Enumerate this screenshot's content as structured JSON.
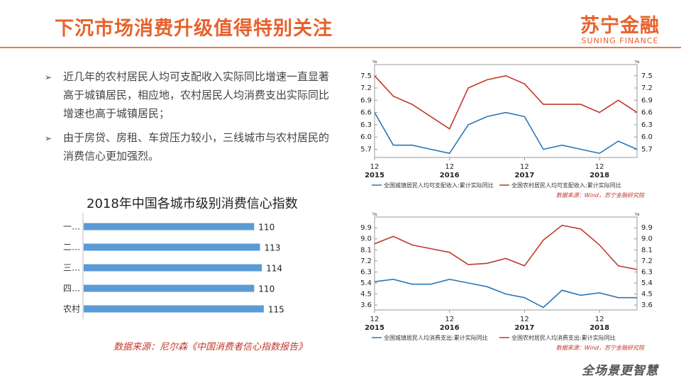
{
  "header": {
    "title": "下沉市场消费升级值得特别关注",
    "logo_cn": "苏宁金融",
    "logo_en": "SUNING FINANCE"
  },
  "bullets": [
    {
      "mark": "➢",
      "text": "近几年的农村居民人均可支配收入实际同比增速一直显著高于城镇居民，相应地，农村居民人均消费支出实际同比增速也高于城镇居民；"
    },
    {
      "mark": "➢",
      "text": "由于房贷、房租、车贷压力较小，三线城市与农村居民的消费信心更加强烈。"
    }
  ],
  "source_left": "数据来源：尼尔森《中国消费者信心指数报告》",
  "footer_logo": "全场景更智慧",
  "chart_data": [
    {
      "type": "bar",
      "orientation": "horizontal",
      "title": "2018年中国各城市级别消费信心指数",
      "categories": [
        "一…",
        "二…",
        "三…",
        "四…",
        "农村"
      ],
      "values": [
        110,
        113,
        114,
        110,
        115
      ],
      "color": "#5b9bd5"
    },
    {
      "type": "line",
      "x_ticks": [
        {
          "top": "12",
          "bottom": "2015"
        },
        {
          "top": "12",
          "bottom": "2016"
        },
        {
          "top": "12",
          "bottom": "2017"
        },
        {
          "top": "12",
          "bottom": "2018"
        }
      ],
      "y_ticks": [
        "7.5",
        "7.2",
        "6.9",
        "6.6",
        "6.3",
        "6.0",
        "5.7"
      ],
      "y_unit": "%",
      "ylim": [
        5.5,
        7.6
      ],
      "series": [
        {
          "name": "全国城镇居民人均可支配收入:累计实际同比",
          "color": "#2e75b6",
          "values": [
            6.6,
            5.8,
            5.8,
            5.7,
            5.6,
            6.3,
            6.5,
            6.6,
            6.5,
            5.7,
            5.8,
            5.7,
            5.6,
            5.9,
            5.7
          ]
        },
        {
          "name": "全国农村居民人均可支配收入:累计实际同比",
          "color": "#c0392b",
          "values": [
            7.5,
            7.0,
            6.8,
            6.5,
            6.2,
            7.2,
            7.4,
            7.5,
            7.3,
            6.8,
            6.8,
            6.8,
            6.6,
            6.9,
            6.6
          ]
        }
      ],
      "source": "数据来源：Wind，苏宁金融研究院"
    },
    {
      "type": "line",
      "x_ticks": [
        {
          "top": "12",
          "bottom": "2015"
        },
        {
          "top": "12",
          "bottom": "2016"
        },
        {
          "top": "12",
          "bottom": "2017"
        },
        {
          "top": "12",
          "bottom": "2018"
        }
      ],
      "y_ticks": [
        "9.9",
        "9.0",
        "8.1",
        "7.2",
        "6.3",
        "5.4",
        "4.5",
        "3.6"
      ],
      "y_unit": "%",
      "ylim": [
        3.2,
        10.2
      ],
      "series": [
        {
          "name": "全国城镇居民人均消费支出:累计实际同比",
          "color": "#2e75b6",
          "values": [
            5.5,
            5.7,
            5.3,
            5.3,
            5.7,
            5.4,
            5.1,
            4.5,
            4.2,
            3.4,
            4.8,
            4.4,
            4.6,
            4.2,
            4.2
          ]
        },
        {
          "name": "全国农村居民人均消费支出:累计实际同比",
          "color": "#c0392b",
          "values": [
            8.6,
            9.2,
            8.5,
            8.2,
            7.9,
            6.9,
            7.0,
            7.4,
            6.8,
            8.9,
            10.1,
            9.8,
            8.5,
            6.8,
            6.5
          ]
        }
      ],
      "source": "数据来源：Wind，苏宁金融研究院"
    }
  ]
}
